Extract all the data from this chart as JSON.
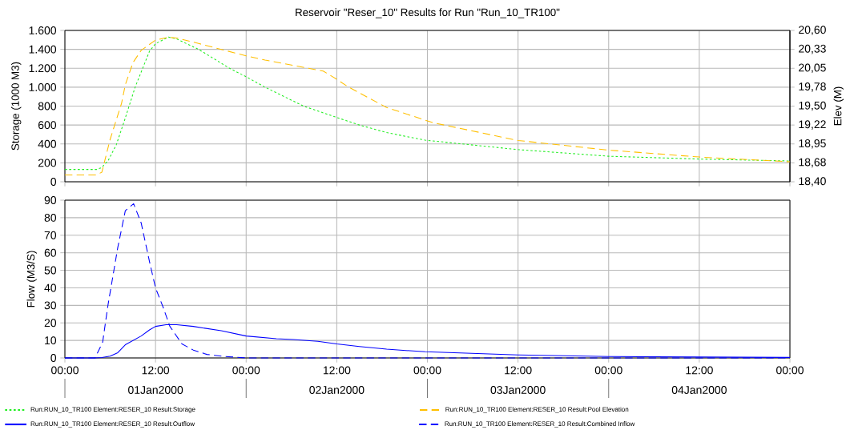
{
  "chart_data": [
    {
      "type": "line",
      "title": "Reservoir \"Reser_10\" Results for Run \"Run_10_TR100\"",
      "ylabel": "Storage (1000 M3)",
      "y2label": "Elev (M)",
      "xlim": [
        "2000-01-01T00:00",
        "2000-01-05T00:00"
      ],
      "xticks": [
        {
          "value": "2000-01-01T00:00",
          "label": null
        },
        {
          "value": "2000-01-01T12:00",
          "label": null
        },
        {
          "value": "2000-01-02T00:00",
          "label": null
        },
        {
          "value": "2000-01-02T12:00",
          "label": null
        },
        {
          "value": "2000-01-03T00:00",
          "label": null
        },
        {
          "value": "2000-01-03T12:00",
          "label": null
        },
        {
          "value": "2000-01-04T00:00",
          "label": null
        },
        {
          "value": "2000-01-04T12:00",
          "label": null
        },
        {
          "value": "2000-01-05T00:00",
          "label": null
        }
      ],
      "ylim": [
        0,
        1600
      ],
      "yticks": [
        0,
        200,
        400,
        600,
        800,
        {
          "value": 1000,
          "label": "1.000"
        },
        {
          "value": 1200,
          "label": "1.200"
        },
        {
          "value": 1400,
          "label": "1.400"
        },
        {
          "value": 1600,
          "label": "1.600"
        }
      ],
      "y2lim": [
        18.4,
        20.6
      ],
      "y2ticks": [
        {
          "value": 18.4,
          "label": "18,40"
        },
        {
          "value": 18.675,
          "label": "18,68"
        },
        {
          "value": 18.95,
          "label": "18,95"
        },
        {
          "value": 19.225,
          "label": "19,22"
        },
        {
          "value": 19.5,
          "label": "19,50"
        },
        {
          "value": 19.775,
          "label": "19,78"
        },
        {
          "value": 20.05,
          "label": "20,05"
        },
        {
          "value": 20.325,
          "label": "20,33"
        },
        {
          "value": 20.6,
          "label": "20,60"
        }
      ],
      "tick_labels": "y",
      "grid": true,
      "legend": "bottom",
      "series": [
        {
          "name": "Run:RUN_10_TR100 Element:RESER_10 Result:Storage",
          "color": "#22ee22",
          "line_style": "dotted",
          "x": [
            "2000-01-01T00:00",
            "2000-01-01T04:12",
            "2000-01-01T04:54",
            "2000-01-01T05:18",
            "2000-01-01T05:42",
            "2000-01-01T06:48",
            "2000-01-01T07:54",
            "2000-01-01T09:18",
            "2000-01-01T10:06",
            "2000-01-01T11:12",
            "2000-01-01T12:00",
            "2000-01-01T13:42",
            "2000-01-01T14:48",
            "2000-01-01T17:42",
            "2000-01-01T21:48",
            "2000-01-02T00:00",
            "2000-01-02T02:30",
            "2000-01-02T07:36",
            "2000-01-02T12:00",
            "2000-01-02T15:00",
            "2000-01-02T18:36",
            "2000-01-02T23:42",
            "2000-01-03T12:00",
            "2000-01-04T00:00",
            "2000-01-04T12:00",
            "2000-01-05T00:00"
          ],
          "values": [
            130,
            130,
            150,
            190,
            220,
            390,
            650,
            1000,
            1160,
            1380,
            1460,
            1530,
            1510,
            1400,
            1200,
            1110,
            1000,
            800,
            680,
            600,
            520,
            440,
            340,
            270,
            240,
            220
          ]
        },
        {
          "name": "Run:RUN_10_TR100 Element:RESER_10 Result:Pool Elevation",
          "color": "#ffbf00",
          "line_style": "dashed",
          "axis": "y2",
          "x": [
            "2000-01-01T00:00",
            "2000-01-01T04:12",
            "2000-01-01T04:54",
            "2000-01-01T06:00",
            "2000-01-01T07:30",
            "2000-01-01T08:00",
            "2000-01-01T09:00",
            "2000-01-01T10:06",
            "2000-01-01T12:00",
            "2000-01-01T13:42",
            "2000-01-01T14:48",
            "2000-01-01T17:42",
            "2000-01-02T00:00",
            "2000-01-02T02:30",
            "2000-01-02T10:12",
            "2000-01-02T12:00",
            "2000-01-02T13:30",
            "2000-01-02T18:36",
            "2000-01-03T00:42",
            "2000-01-03T12:00",
            "2000-01-04T00:00",
            "2000-01-04T12:00",
            "2000-01-05T00:00"
          ],
          "values": [
            18.5,
            18.5,
            18.54,
            19.02,
            19.54,
            19.81,
            20.13,
            20.31,
            20.46,
            20.5,
            20.49,
            20.41,
            20.23,
            20.17,
            20.01,
            19.89,
            19.78,
            19.48,
            19.26,
            19.0,
            18.86,
            18.76,
            18.69
          ]
        }
      ]
    },
    {
      "type": "line",
      "ylabel": "Flow (M3/S)",
      "xlim": [
        "2000-01-01T00:00",
        "2000-01-05T00:00"
      ],
      "xticks": [
        {
          "value": "2000-01-01T00:00",
          "label": "00:00"
        },
        {
          "value": "2000-01-01T12:00",
          "label": "12:00"
        },
        {
          "value": "2000-01-02T00:00",
          "label": "00:00"
        },
        {
          "value": "2000-01-02T12:00",
          "label": "12:00"
        },
        {
          "value": "2000-01-03T00:00",
          "label": "00:00"
        },
        {
          "value": "2000-01-03T12:00",
          "label": "12:00"
        },
        {
          "value": "2000-01-04T00:00",
          "label": "00:00"
        },
        {
          "value": "2000-01-04T12:00",
          "label": "12:00"
        },
        {
          "value": "2000-01-05T00:00",
          "label": "00:00"
        }
      ],
      "ylim": [
        0,
        90
      ],
      "yticks": [
        0,
        10,
        20,
        30,
        40,
        50,
        60,
        70,
        80,
        90
      ],
      "grid": true,
      "legend": "bottom",
      "annotations": [
        "01Jan2000",
        "02Jan2000",
        "03Jan2000",
        "04Jan2000"
      ],
      "series": [
        {
          "name": "Run:RUN_10_TR100 Element:RESER_10 Result:Outflow",
          "color": "#0000ff",
          "line_style": "solid",
          "x": [
            "2000-01-01T00:00",
            "2000-01-01T04:00",
            "2000-01-01T04:54",
            "2000-01-01T06:00",
            "2000-01-01T07:00",
            "2000-01-01T08:00",
            "2000-01-01T10:06",
            "2000-01-01T11:12",
            "2000-01-01T12:00",
            "2000-01-01T13:24",
            "2000-01-01T14:48",
            "2000-01-01T17:00",
            "2000-01-01T20:42",
            "2000-01-02T00:00",
            "2000-01-02T04:00",
            "2000-01-02T06:12",
            "2000-01-02T09:30",
            "2000-01-02T12:00",
            "2000-01-02T15:00",
            "2000-01-02T18:36",
            "2000-01-02T23:42",
            "2000-01-03T12:00",
            "2000-01-04T00:00",
            "2000-01-04T12:00",
            "2000-01-05T00:00"
          ],
          "values": [
            0,
            0,
            0.2,
            1,
            3,
            7.5,
            12.5,
            16,
            18,
            19,
            19,
            18,
            15.5,
            12.5,
            11,
            10.5,
            9.5,
            8,
            6.5,
            5,
            3.5,
            1.7,
            0.8,
            0.5,
            0.3
          ]
        },
        {
          "name": "Run:RUN_10_TR100 Element:RESER_10 Result:Combined Inflow",
          "color": "#0000ff",
          "line_style": "dashed",
          "x": [
            "2000-01-01T00:00",
            "2000-01-01T04:00",
            "2000-01-01T05:00",
            "2000-01-01T05:42",
            "2000-01-01T07:00",
            "2000-01-01T08:00",
            "2000-01-01T09:06",
            "2000-01-01T10:06",
            "2000-01-01T11:12",
            "2000-01-01T12:00",
            "2000-01-01T13:00",
            "2000-01-01T13:54",
            "2000-01-01T15:30",
            "2000-01-01T17:00",
            "2000-01-01T18:48",
            "2000-01-01T20:42",
            "2000-01-02T00:00",
            "2000-01-05T00:00"
          ],
          "values": [
            0,
            0,
            9,
            30,
            63,
            84,
            88,
            77,
            55,
            40,
            29,
            18,
            8,
            4.5,
            2,
            1,
            0,
            0
          ]
        }
      ]
    }
  ]
}
